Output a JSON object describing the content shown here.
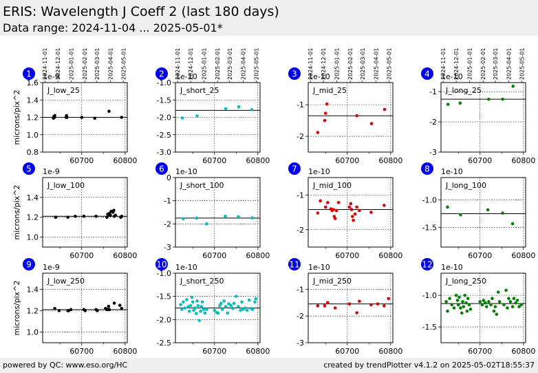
{
  "header": {
    "title": "ERIS: Wavelength J Coeff 2 (last 180 days)",
    "subtitle": "Data range: 2024-11-04 ... 2025-05-01*"
  },
  "footer": {
    "left": "powered by QC: www.eso.org/HC",
    "right": "created by trendPlotter v4.1.2 on 2025-05-02T18:55:37"
  },
  "colors": {
    "black": "#000000",
    "cyan": "#00bfbf",
    "red": "#e00000",
    "green": "#008000",
    "badge": "#0000ee"
  },
  "chart_data": [
    {
      "type": "scatter",
      "badge": "1",
      "label": "J_low_25",
      "multiplier": "1e-9",
      "ylabel": "microns/pix^2",
      "color": "black",
      "xlim": [
        60610,
        60805
      ],
      "ylim": [
        0.8,
        1.6
      ],
      "yticks": [
        "0.8",
        "1.0",
        "1.2",
        "1.4",
        "1.6"
      ],
      "yticks_v": [
        0.8,
        1.0,
        1.2,
        1.4,
        1.6
      ],
      "hline": 1.2,
      "xticks": [
        60700,
        60800
      ],
      "xtick_labels": [
        "60700",
        "60800"
      ],
      "date_ticks": [
        "2024-11-01",
        "2024-12-01",
        "2025-01-01",
        "2025-02-01",
        "2025-03-01",
        "2025-04-01",
        "2025-05-01"
      ],
      "date_ticks_mjd": [
        60615,
        60645,
        60676,
        60707,
        60735,
        60766,
        60796
      ],
      "points": [
        [
          60635,
          1.19
        ],
        [
          60636,
          1.21
        ],
        [
          60637,
          1.2
        ],
        [
          60638,
          1.22
        ],
        [
          60664,
          1.2
        ],
        [
          60665,
          1.22
        ],
        [
          60666,
          1.2
        ],
        [
          60700,
          1.2
        ],
        [
          60730,
          1.19
        ],
        [
          60763,
          1.27
        ],
        [
          60792,
          1.2
        ]
      ]
    },
    {
      "type": "scatter",
      "badge": "2",
      "label": "J_short_25",
      "multiplier": "1e-10",
      "color": "cyan",
      "xlim": [
        60610,
        60805
      ],
      "ylim": [
        -3.0,
        -1.0
      ],
      "yticks": [
        "-3.0",
        "-2.5",
        "-2.0",
        "-1.5",
        "-1.0"
      ],
      "yticks_v": [
        -3.0,
        -2.5,
        -2.0,
        -1.5,
        -1.0
      ],
      "hline": -1.8,
      "xticks": [
        60700,
        60800
      ],
      "xtick_labels": [
        "60700",
        "60800"
      ],
      "date_ticks": [
        "2024-11-01",
        "2024-12-01",
        "2025-01-01",
        "2025-02-01",
        "2025-03-01",
        "2025-04-01",
        "2025-05-01"
      ],
      "date_ticks_mjd": [
        60615,
        60645,
        60676,
        60707,
        60735,
        60766,
        60796
      ],
      "points": [
        [
          60626,
          -2.02
        ],
        [
          60660,
          -1.96
        ],
        [
          60726,
          -1.75
        ],
        [
          60756,
          -1.7
        ],
        [
          60786,
          -1.78
        ]
      ]
    },
    {
      "type": "scatter",
      "badge": "3",
      "label": "J_mid_25",
      "multiplier": "1e-10",
      "color": "red",
      "xlim": [
        60610,
        60805
      ],
      "ylim": [
        -2.5,
        -0.3
      ],
      "yticks": [
        "-2",
        "-1"
      ],
      "yticks_v": [
        -2,
        -1
      ],
      "hline": -1.35,
      "xticks": [
        60700,
        60800
      ],
      "xtick_labels": [
        "60700",
        "60800"
      ],
      "date_ticks": [
        "2024-11-01",
        "2024-12-01",
        "2025-01-01",
        "2025-02-01",
        "2025-03-01",
        "2025-04-01",
        "2025-05-01"
      ],
      "date_ticks_mjd": [
        60615,
        60645,
        60676,
        60707,
        60735,
        60766,
        60796
      ],
      "points": [
        [
          60632,
          -1.88
        ],
        [
          60648,
          -1.5
        ],
        [
          60650,
          -1.27
        ],
        [
          60653,
          -0.98
        ],
        [
          60722,
          -1.35
        ],
        [
          60756,
          -1.6
        ],
        [
          60786,
          -1.15
        ]
      ]
    },
    {
      "type": "scatter",
      "badge": "4",
      "label": "J_long_25",
      "multiplier": "1e-10",
      "color": "green",
      "xlim": [
        60610,
        60805
      ],
      "ylim": [
        -3.0,
        -0.7
      ],
      "yticks": [
        "-3",
        "-2",
        "-1"
      ],
      "yticks_v": [
        -3,
        -2,
        -1
      ],
      "hline": -1.25,
      "xticks": [
        60700,
        60800
      ],
      "xtick_labels": [
        "60700",
        "60800"
      ],
      "date_ticks": [
        "2024-11-01",
        "2024-12-01",
        "2025-01-01",
        "2025-02-01",
        "2025-03-01",
        "2025-04-01",
        "2025-05-01"
      ],
      "date_ticks_mjd": [
        60615,
        60645,
        60676,
        60707,
        60735,
        60766,
        60796
      ],
      "points": [
        [
          60626,
          -1.42
        ],
        [
          60654,
          -1.38
        ],
        [
          60720,
          -1.25
        ],
        [
          60752,
          -1.25
        ],
        [
          60776,
          -0.82
        ]
      ]
    },
    {
      "type": "scatter",
      "badge": "5",
      "label": "J_low_100",
      "multiplier": "1e-9",
      "ylabel": "microns/pix^2",
      "color": "black",
      "xlim": [
        60610,
        60805
      ],
      "ylim": [
        0.9,
        1.6
      ],
      "yticks": [
        "1.0",
        "1.2",
        "1.4"
      ],
      "yticks_v": [
        1.0,
        1.2,
        1.4
      ],
      "hline": 1.21,
      "xticks": [
        60700,
        60800
      ],
      "xtick_labels": [
        "60700",
        "60800"
      ],
      "points": [
        [
          60640,
          1.2
        ],
        [
          60668,
          1.2
        ],
        [
          60685,
          1.21
        ],
        [
          60705,
          1.21
        ],
        [
          60733,
          1.21
        ],
        [
          60758,
          1.2
        ],
        [
          60760,
          1.23
        ],
        [
          60762,
          1.22
        ],
        [
          60764,
          1.24
        ],
        [
          60766,
          1.22
        ],
        [
          60768,
          1.26
        ],
        [
          60772,
          1.25
        ],
        [
          60774,
          1.27
        ],
        [
          60775,
          1.21
        ],
        [
          60778,
          1.22
        ],
        [
          60790,
          1.2
        ],
        [
          60792,
          1.21
        ]
      ]
    },
    {
      "type": "scatter",
      "badge": "6",
      "label": "J_short_100",
      "multiplier": "1e-10",
      "color": "cyan",
      "xlim": [
        60610,
        60805
      ],
      "ylim": [
        -3.0,
        0.0
      ],
      "yticks": [
        "-3",
        "-2",
        "-1",
        "0"
      ],
      "yticks_v": [
        -3,
        -2,
        -1,
        0
      ],
      "hline": -1.75,
      "xticks": [
        60700,
        60800
      ],
      "xtick_labels": [
        "60700",
        "60800"
      ],
      "points": [
        [
          60628,
          -1.78
        ],
        [
          60659,
          -1.75
        ],
        [
          60682,
          -2.0
        ],
        [
          60725,
          -1.67
        ],
        [
          60755,
          -1.69
        ],
        [
          60787,
          -1.74
        ]
      ]
    },
    {
      "type": "scatter",
      "badge": "7",
      "label": "J_mid_100",
      "multiplier": "1e-10",
      "color": "red",
      "xlim": [
        60610,
        60805
      ],
      "ylim": [
        -2.5,
        -0.5
      ],
      "yticks": [
        "-2",
        "-1"
      ],
      "yticks_v": [
        -2,
        -1
      ],
      "hline": -1.42,
      "xticks": [
        60700,
        60800
      ],
      "xtick_labels": [
        "60700",
        "60800"
      ],
      "points": [
        [
          60632,
          -1.52
        ],
        [
          60638,
          -1.17
        ],
        [
          60650,
          -1.35
        ],
        [
          60655,
          -1.22
        ],
        [
          60662,
          -1.4
        ],
        [
          60665,
          -1.45
        ],
        [
          60668,
          -1.42
        ],
        [
          60670,
          -1.62
        ],
        [
          60672,
          -1.68
        ],
        [
          60675,
          -1.45
        ],
        [
          60680,
          -1.22
        ],
        [
          60705,
          -1.35
        ],
        [
          60708,
          -1.25
        ],
        [
          60710,
          -1.42
        ],
        [
          60712,
          -1.62
        ],
        [
          60714,
          -1.73
        ],
        [
          60718,
          -1.55
        ],
        [
          60722,
          -1.35
        ],
        [
          60728,
          -1.45
        ],
        [
          60755,
          -1.5
        ],
        [
          60785,
          -1.3
        ]
      ]
    },
    {
      "type": "scatter",
      "badge": "8",
      "label": "J_long_100",
      "multiplier": "1e-10",
      "color": "green",
      "xlim": [
        60610,
        60805
      ],
      "ylim": [
        -1.85,
        -0.6
      ],
      "yticks": [
        "-1.5",
        "-1.0"
      ],
      "yticks_v": [
        -1.5,
        -1.0
      ],
      "hline": -1.25,
      "xticks": [
        60700,
        60800
      ],
      "xtick_labels": [
        "60700",
        "60800"
      ],
      "points": [
        [
          60625,
          -1.13
        ],
        [
          60655,
          -1.27
        ],
        [
          60718,
          -1.18
        ],
        [
          60752,
          -1.24
        ],
        [
          60775,
          -1.43
        ]
      ]
    },
    {
      "type": "scatter",
      "badge": "9",
      "label": "J_low_250",
      "multiplier": "1e-9",
      "ylabel": "microns/pix^2",
      "color": "black",
      "xlim": [
        60610,
        60805
      ],
      "ylim": [
        0.9,
        1.55
      ],
      "yticks": [
        "1.0",
        "1.2",
        "1.4"
      ],
      "yticks_v": [
        1.0,
        1.2,
        1.4
      ],
      "hline": 1.21,
      "xticks": [
        60700,
        60800
      ],
      "xtick_labels": [
        "60700",
        "60800"
      ],
      "points": [
        [
          60638,
          1.22
        ],
        [
          60648,
          1.2
        ],
        [
          60668,
          1.2
        ],
        [
          60670,
          1.2
        ],
        [
          60675,
          1.21
        ],
        [
          60705,
          1.21
        ],
        [
          60708,
          1.2
        ],
        [
          60733,
          1.21
        ],
        [
          60736,
          1.2
        ],
        [
          60755,
          1.22
        ],
        [
          60758,
          1.21
        ],
        [
          60760,
          1.21
        ],
        [
          60762,
          1.24
        ],
        [
          60764,
          1.21
        ],
        [
          60775,
          1.27
        ],
        [
          60788,
          1.25
        ],
        [
          60792,
          1.22
        ]
      ]
    },
    {
      "type": "scatter",
      "badge": "10",
      "label": "J_short_250",
      "multiplier": "1e-10",
      "color": "cyan",
      "xlim": [
        60610,
        60805
      ],
      "ylim": [
        -2.5,
        -1.0
      ],
      "yticks": [
        "-2.5",
        "-2.0",
        "-1.5",
        "-1.0"
      ],
      "yticks_v": [
        -2.5,
        -2.0,
        -1.5,
        -1.0
      ],
      "hline": -1.75,
      "xticks": [
        60700,
        60800
      ],
      "xtick_labels": [
        "60700",
        "60800"
      ],
      "points": [
        [
          60622,
          -1.68
        ],
        [
          60625,
          -1.78
        ],
        [
          60628,
          -1.62
        ],
        [
          60632,
          -1.75
        ],
        [
          60636,
          -1.57
        ],
        [
          60640,
          -1.72
        ],
        [
          60642,
          -1.82
        ],
        [
          60645,
          -1.7
        ],
        [
          60648,
          -1.52
        ],
        [
          60650,
          -1.62
        ],
        [
          60652,
          -1.8
        ],
        [
          60655,
          -1.75
        ],
        [
          60658,
          -1.87
        ],
        [
          60660,
          -1.6
        ],
        [
          60662,
          -1.7
        ],
        [
          60665,
          -2.02
        ],
        [
          60668,
          -1.82
        ],
        [
          60670,
          -1.72
        ],
        [
          60672,
          -1.62
        ],
        [
          60675,
          -1.78
        ],
        [
          60678,
          -1.86
        ],
        [
          60682,
          -1.78
        ],
        [
          60700,
          -1.8
        ],
        [
          60705,
          -1.85
        ],
        [
          60708,
          -1.86
        ],
        [
          60712,
          -1.7
        ],
        [
          60715,
          -1.65
        ],
        [
          60718,
          -1.78
        ],
        [
          60722,
          -1.6
        ],
        [
          60726,
          -1.72
        ],
        [
          60730,
          -1.86
        ],
        [
          60733,
          -1.66
        ],
        [
          60738,
          -1.7
        ],
        [
          60742,
          -1.76
        ],
        [
          60745,
          -1.65
        ],
        [
          60750,
          -1.5
        ],
        [
          60755,
          -1.72
        ],
        [
          60760,
          -1.8
        ],
        [
          60763,
          -1.62
        ],
        [
          60766,
          -1.78
        ],
        [
          60770,
          -1.75
        ],
        [
          60775,
          -1.8
        ],
        [
          60780,
          -1.58
        ],
        [
          60784,
          -1.76
        ],
        [
          60788,
          -1.78
        ],
        [
          60793,
          -1.62
        ],
        [
          60795,
          -1.55
        ]
      ]
    },
    {
      "type": "scatter",
      "badge": "11",
      "label": "J_mid_250",
      "multiplier": "1e-10",
      "color": "red",
      "xlim": [
        60610,
        60805
      ],
      "ylim": [
        -3.0,
        -0.4
      ],
      "yticks": [
        "-3",
        "-2",
        "-1"
      ],
      "yticks_v": [
        -3,
        -2,
        -1
      ],
      "hline": -1.55,
      "xticks": [
        60700,
        60800
      ],
      "xtick_labels": [
        "60700",
        "60800"
      ],
      "points": [
        [
          60632,
          -1.62
        ],
        [
          60648,
          -1.62
        ],
        [
          60655,
          -1.5
        ],
        [
          60672,
          -1.7
        ],
        [
          60705,
          -1.55
        ],
        [
          60722,
          -1.88
        ],
        [
          60728,
          -1.45
        ],
        [
          60755,
          -1.58
        ],
        [
          60770,
          -1.55
        ],
        [
          60785,
          -1.62
        ],
        [
          60795,
          -1.35
        ]
      ]
    },
    {
      "type": "scatter",
      "badge": "12",
      "label": "J_long_250",
      "multiplier": "1e-10",
      "color": "green",
      "xlim": [
        60610,
        60805
      ],
      "ylim": [
        -1.75,
        -0.65
      ],
      "yticks": [
        "-1.5",
        "-1.0"
      ],
      "yticks_v": [
        -1.5,
        -1.0
      ],
      "hline": -1.13,
      "xticks": [
        60700,
        60800
      ],
      "xtick_labels": [
        "60700",
        "60800"
      ],
      "points": [
        [
          60622,
          -1.1
        ],
        [
          60625,
          -1.25
        ],
        [
          60630,
          -1.05
        ],
        [
          60635,
          -1.15
        ],
        [
          60640,
          -1.2
        ],
        [
          60645,
          -1.0
        ],
        [
          60648,
          -1.08
        ],
        [
          60650,
          -1.15
        ],
        [
          60652,
          -1.03
        ],
        [
          60655,
          -1.2
        ],
        [
          60658,
          -1.28
        ],
        [
          60660,
          -1.1
        ],
        [
          60662,
          -1.18
        ],
        [
          60665,
          -1.0
        ],
        [
          60668,
          -1.12
        ],
        [
          60670,
          -1.25
        ],
        [
          60672,
          -1.05
        ],
        [
          60675,
          -1.15
        ],
        [
          60678,
          -1.22
        ],
        [
          60700,
          -1.1
        ],
        [
          60705,
          -1.15
        ],
        [
          60708,
          -1.08
        ],
        [
          60712,
          -1.12
        ],
        [
          60715,
          -1.18
        ],
        [
          60720,
          -1.1
        ],
        [
          60725,
          -1.15
        ],
        [
          60728,
          -1.05
        ],
        [
          60732,
          -1.25
        ],
        [
          60735,
          -1.18
        ],
        [
          60738,
          -1.3
        ],
        [
          60742,
          -0.95
        ],
        [
          60745,
          -1.1
        ],
        [
          60755,
          -1.15
        ],
        [
          60760,
          -0.92
        ],
        [
          60763,
          -1.2
        ],
        [
          60766,
          -1.05
        ],
        [
          60770,
          -1.1
        ],
        [
          60775,
          -1.18
        ],
        [
          60778,
          -1.05
        ],
        [
          60782,
          -1.12
        ],
        [
          60786,
          -1.08
        ],
        [
          60790,
          -1.18
        ],
        [
          60795,
          -1.15
        ]
      ]
    }
  ]
}
